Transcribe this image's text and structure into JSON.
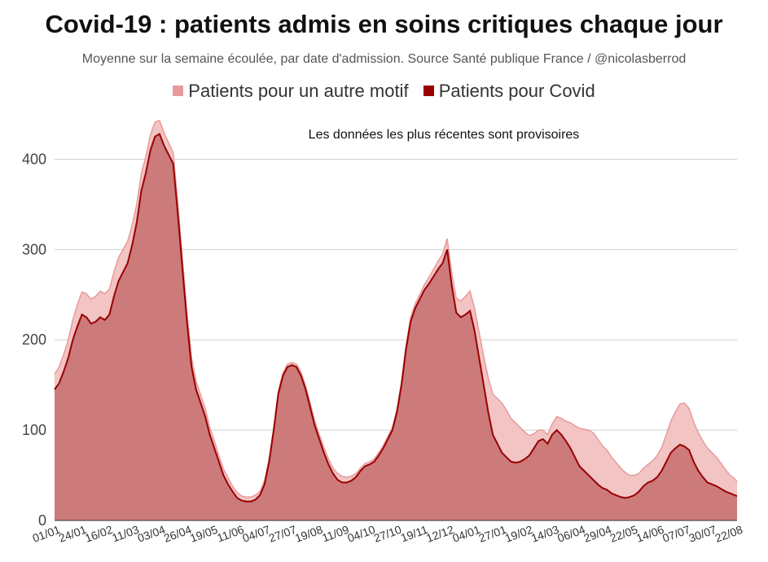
{
  "title": "Covid-19 : patients admis en soins critiques chaque jour",
  "subtitle": "Moyenne sur la semaine écoulée, par date d'admission. Source Santé publique France / @nicolasberrod",
  "chart_data": {
    "type": "area",
    "stacked": true,
    "annotation": "Les données les plus récentes sont provisoires",
    "ylim": [
      0,
      450
    ],
    "yticks": [
      0,
      100,
      200,
      300,
      400
    ],
    "grid": true,
    "legend": "top-center",
    "xtick_labels": [
      "01/01",
      "24/01",
      "16/02",
      "11/03",
      "03/04",
      "26/04",
      "19/05",
      "11/06",
      "04/07",
      "27/07",
      "19/08",
      "11/09",
      "04/10",
      "27/10",
      "19/11",
      "12/12",
      "04/01",
      "27/01",
      "19/02",
      "14/03",
      "06/04",
      "29/04",
      "22/05",
      "14/06",
      "07/07",
      "30/07",
      "22/08"
    ],
    "x": [
      0,
      4,
      8,
      12,
      16,
      20,
      24,
      28,
      32,
      36,
      40,
      44,
      48,
      52,
      56,
      60,
      64,
      68,
      72,
      76,
      80,
      84,
      88,
      92,
      96,
      100,
      104,
      108,
      112,
      116,
      120,
      124,
      128,
      132,
      136,
      140,
      144,
      148,
      152,
      156,
      160,
      164,
      168,
      172,
      176,
      180,
      184,
      188,
      192,
      196,
      200,
      204,
      208,
      212,
      216,
      220,
      224,
      228,
      232,
      236,
      240,
      244,
      248,
      252,
      256,
      260,
      264,
      268,
      272,
      276,
      280,
      284,
      288,
      292,
      296,
      300,
      304,
      308,
      312,
      316,
      320,
      324,
      328,
      332,
      336,
      340,
      344,
      348,
      352,
      356,
      360,
      364,
      368,
      372,
      376,
      380,
      384,
      388,
      392,
      396,
      400,
      404,
      408,
      412,
      416,
      420,
      424,
      428,
      432,
      436,
      440,
      444,
      448,
      452,
      456,
      460,
      464,
      468,
      472,
      476,
      480,
      484,
      488,
      492,
      496,
      500,
      504,
      508,
      512,
      516,
      520,
      524,
      528,
      532,
      536,
      540,
      544,
      548,
      552,
      556,
      560,
      564,
      568,
      572,
      576,
      580,
      584,
      588,
      592,
      596,
      598
    ],
    "series": [
      {
        "name": "Patients pour un autre motif",
        "color": "#e89a9a",
        "fill": "#f2c4c4",
        "values": [
          17,
          18,
          19,
          20,
          22,
          24,
          25,
          26,
          27,
          28,
          29,
          29,
          28,
          27,
          26,
          25,
          24,
          22,
          20,
          19,
          18,
          17,
          16,
          15,
          14,
          13,
          12,
          12,
          11,
          10,
          10,
          9,
          9,
          9,
          8,
          8,
          7,
          7,
          7,
          6,
          6,
          5,
          5,
          5,
          5,
          4,
          4,
          4,
          3,
          3,
          3,
          3,
          3,
          3,
          4,
          4,
          5,
          5,
          5,
          6,
          6,
          6,
          7,
          7,
          6,
          5,
          4,
          3,
          3,
          3,
          3,
          3,
          3,
          3,
          3,
          3,
          4,
          4,
          5,
          5,
          5,
          6,
          7,
          8,
          9,
          10,
          12,
          14,
          16,
          18,
          20,
          22,
          25,
          28,
          32,
          38,
          45,
          50,
          55,
          52,
          48,
          44,
          38,
          30,
          22,
          16,
          12,
          10,
          10,
          12,
          15,
          18,
          22,
          28,
          35,
          42,
          46,
          50,
          52,
          50,
          47,
          44,
          40,
          36,
          32,
          28,
          24,
          22,
          20,
          20,
          20,
          22,
          24,
          26,
          30,
          35,
          40,
          45,
          48,
          46,
          44,
          42,
          40,
          38,
          35,
          32,
          28,
          24,
          20,
          18,
          16
        ]
      },
      {
        "name": "Patients pour Covid",
        "color": "#990000",
        "fill": "#cc7a7a",
        "values": [
          145,
          152,
          165,
          180,
          200,
          215,
          228,
          225,
          218,
          220,
          225,
          222,
          228,
          248,
          265,
          275,
          285,
          305,
          330,
          365,
          385,
          410,
          425,
          428,
          415,
          405,
          395,
          340,
          280,
          220,
          170,
          145,
          130,
          115,
          95,
          80,
          65,
          50,
          40,
          32,
          25,
          22,
          21,
          21,
          23,
          28,
          40,
          65,
          100,
          140,
          160,
          170,
          172,
          170,
          160,
          145,
          125,
          105,
          90,
          75,
          62,
          52,
          45,
          42,
          42,
          44,
          48,
          55,
          60,
          62,
          65,
          72,
          80,
          90,
          100,
          120,
          150,
          190,
          220,
          235,
          245,
          255,
          262,
          270,
          278,
          285,
          300,
          260,
          230,
          225,
          228,
          232,
          210,
          180,
          150,
          120,
          95,
          85,
          75,
          70,
          65,
          64,
          65,
          68,
          72,
          80,
          88,
          90,
          85,
          95,
          100,
          95,
          88,
          80,
          70,
          60,
          55,
          50,
          45,
          40,
          36,
          34,
          30,
          28,
          26,
          25,
          26,
          28,
          32,
          38,
          42,
          44,
          48,
          55,
          65,
          75,
          80,
          84,
          82,
          78,
          65,
          55,
          48,
          42,
          40,
          38,
          35,
          32,
          30,
          28,
          27
        ]
      }
    ]
  }
}
